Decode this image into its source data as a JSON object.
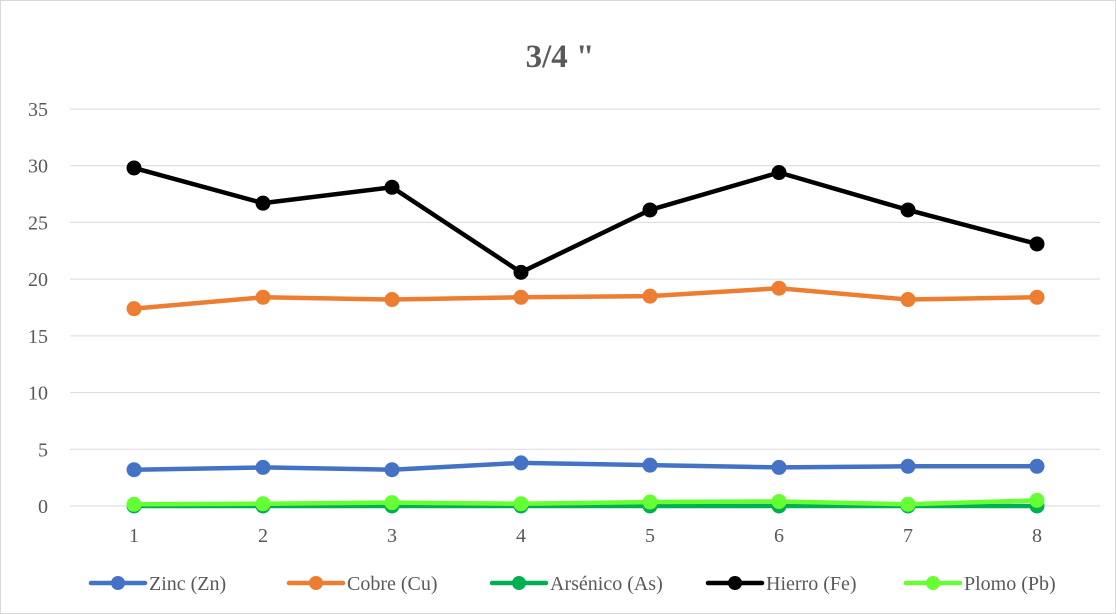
{
  "chart_data": {
    "type": "line",
    "title": "3/4 \"",
    "xlabel": "",
    "ylabel": "",
    "categories": [
      "1",
      "2",
      "3",
      "4",
      "5",
      "6",
      "7",
      "8"
    ],
    "ylim": [
      0,
      35
    ],
    "yticks": [
      0,
      5,
      10,
      15,
      20,
      25,
      30,
      35
    ],
    "grid": true,
    "legend_position": "bottom",
    "series": [
      {
        "name": "Zinc (Zn)",
        "color": "#4472c4",
        "values": [
          3.2,
          3.4,
          3.2,
          3.8,
          3.6,
          3.4,
          3.5,
          3.5
        ]
      },
      {
        "name": "Cobre (Cu)",
        "color": "#ed7d31",
        "values": [
          17.4,
          18.4,
          18.2,
          18.4,
          18.5,
          19.2,
          18.2,
          18.4
        ]
      },
      {
        "name": "Arsénico (As)",
        "color": "#00b050",
        "values": [
          0.0,
          0.0,
          0.0,
          0.0,
          0.0,
          0.0,
          0.0,
          0.0
        ]
      },
      {
        "name": "Hierro (Fe)",
        "color": "#000000",
        "values": [
          29.8,
          26.7,
          28.1,
          20.6,
          26.1,
          29.4,
          26.1,
          23.1
        ]
      },
      {
        "name": "Plomo (Pb)",
        "color": "#66ff33",
        "values": [
          0.15,
          0.2,
          0.3,
          0.2,
          0.35,
          0.4,
          0.15,
          0.5
        ]
      }
    ]
  }
}
